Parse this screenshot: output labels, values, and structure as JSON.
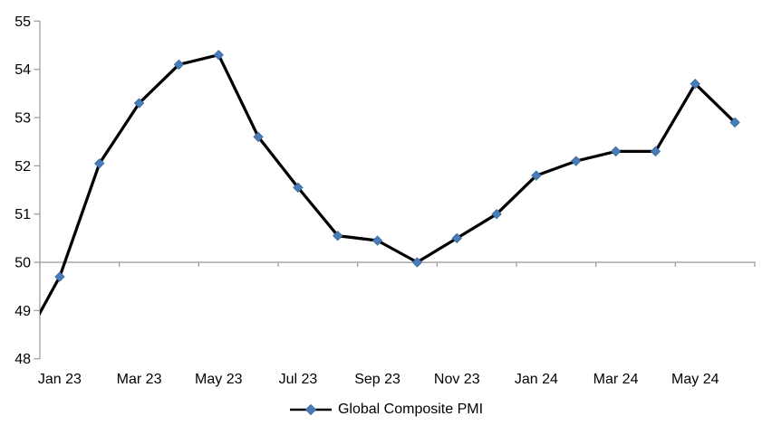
{
  "chart_data": {
    "type": "line",
    "title": "",
    "xlabel": "",
    "ylabel": "",
    "categories": [
      "Jan 23",
      "Feb 23",
      "Mar 23",
      "Apr 23",
      "May 23",
      "Jun 23",
      "Jul 23",
      "Aug 23",
      "Sep 23",
      "Oct 23",
      "Nov 23",
      "Dec 23",
      "Jan 24",
      "Feb 24",
      "Mar 24",
      "Apr 24",
      "May 24",
      "Jun 24"
    ],
    "series": [
      {
        "name": "Global Composite PMI",
        "values": [
          49.7,
          52.05,
          53.3,
          54.1,
          54.3,
          52.6,
          51.55,
          50.55,
          50.45,
          50.0,
          50.5,
          51.0,
          51.8,
          52.1,
          52.3,
          52.3,
          53.7,
          52.9
        ],
        "lead_in_clipped_value": 48.2,
        "line_color": "#000000",
        "line_width": 3.25,
        "marker_shape": "diamond",
        "marker_size": 10,
        "marker_fill": "#4A7DB8",
        "marker_stroke": "#3E6DA5"
      }
    ],
    "xtick_labels": [
      "Jan 23",
      "Mar 23",
      "May 23",
      "Jul 23",
      "Sep 23",
      "Nov 23",
      "Jan 24",
      "Mar 24",
      "May 24"
    ],
    "ytick_labels": [
      "48",
      "49",
      "50",
      "51",
      "52",
      "53",
      "54",
      "55"
    ],
    "ylim": [
      48,
      55
    ],
    "ytick_step": 1,
    "category_axis_cross_value": 50,
    "grid": false,
    "legend_position": "bottom-center",
    "axis_color": "#A0A0A0",
    "text_color": "#000000",
    "background_color": "#FFFFFF"
  }
}
